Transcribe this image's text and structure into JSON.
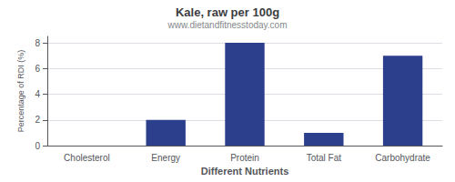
{
  "chart_data": {
    "type": "bar",
    "title": "Kale, raw per 100g",
    "subtitle": "www.dietandfitnesstoday.com",
    "xlabel": "Different Nutrients",
    "ylabel": "Percentage of RDI (%)",
    "categories": [
      "Cholesterol",
      "Energy",
      "Protein",
      "Total Fat",
      "Carbohydrate"
    ],
    "values": [
      0,
      2,
      8,
      1,
      7
    ],
    "color": "#2b3f8c",
    "ylim": [
      0,
      8.5
    ],
    "yticks": [
      0,
      2,
      4,
      6,
      8
    ],
    "grid": true
  }
}
